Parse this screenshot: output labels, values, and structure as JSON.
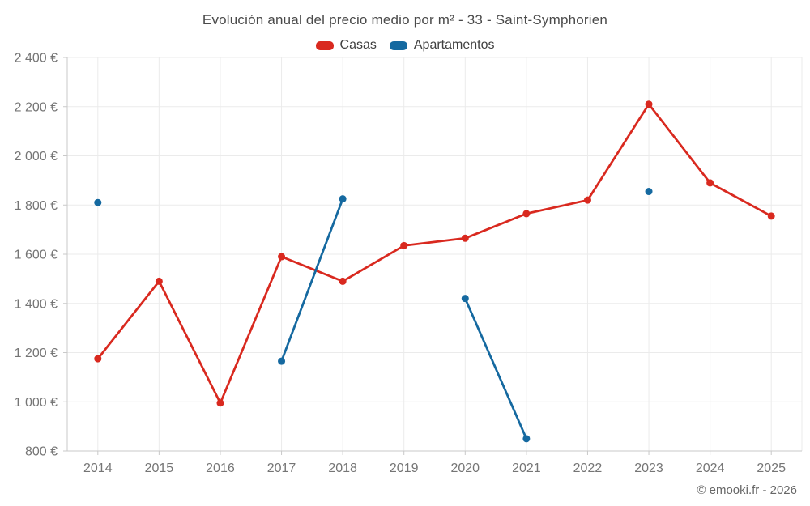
{
  "title": "Evolución anual del precio medio por m² - 33 - Saint-Symphorien",
  "footer": "© emooki.fr - 2026",
  "colors": {
    "casas": "#d9291f",
    "apartamentos": "#1569a0",
    "grid_light": "#ebebeb",
    "axis_line": "#c9c9c9",
    "tick_label": "#757575"
  },
  "chart_data": {
    "type": "line",
    "title": "Evolución anual del precio medio por m² - 33 - Saint-Symphorien",
    "categories": [
      "2014",
      "2015",
      "2016",
      "2017",
      "2018",
      "2019",
      "2020",
      "2021",
      "2022",
      "2023",
      "2024",
      "2025"
    ],
    "series": [
      {
        "name": "Casas",
        "color": "#d9291f",
        "values": [
          1175,
          1490,
          995,
          1590,
          1490,
          1635,
          1665,
          1765,
          1820,
          2210,
          1890,
          1755
        ]
      },
      {
        "name": "Apartamentos",
        "color": "#1569a0",
        "values": [
          1810,
          null,
          null,
          1165,
          1825,
          null,
          1420,
          850,
          null,
          1855,
          null,
          null
        ]
      }
    ],
    "xlabel": "",
    "ylabel": "",
    "ylim": [
      800,
      2400
    ],
    "y_tick_step": 200,
    "y_tick_labels": [
      "800 €",
      "1 000 €",
      "1 200 €",
      "1 400 €",
      "1 600 €",
      "1 800 €",
      "2 000 €",
      "2 200 €",
      "2 400 €"
    ],
    "grid": true,
    "legend_position": "top",
    "marker_radius": 4.5,
    "line_width": 2.75
  }
}
